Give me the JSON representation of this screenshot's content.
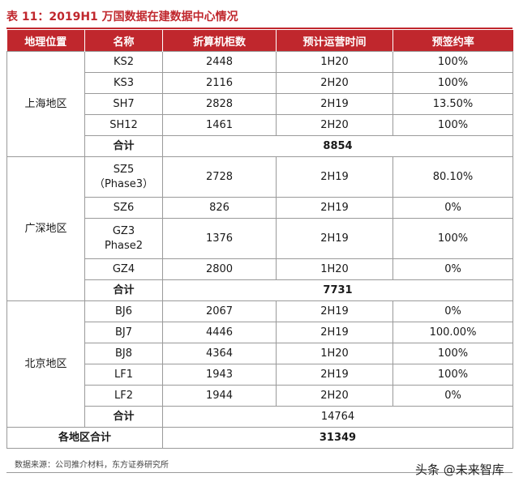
{
  "title": "表 11：2019H1 万国数据在建数据中心情况",
  "headers": [
    "地理位置",
    "名称",
    "折算机柜数",
    "预计运营时间",
    "预签约率"
  ],
  "regions": [
    {
      "name": "上海地区",
      "rows": [
        {
          "name": "KS2",
          "cabinets": "2448",
          "time": "1H20",
          "rate": "100%"
        },
        {
          "name": "KS3",
          "cabinets": "2116",
          "time": "2H20",
          "rate": "100%"
        },
        {
          "name": "SH7",
          "cabinets": "2828",
          "time": "2H19",
          "rate": "13.50%"
        },
        {
          "name": "SH12",
          "cabinets": "1461",
          "time": "2H20",
          "rate": "100%"
        }
      ],
      "subtotal_label": "合计",
      "subtotal_value": "8854"
    },
    {
      "name": "广深地区",
      "rows": [
        {
          "name_line1": "SZ5",
          "name_line2": "（Phase3）",
          "cabinets": "2728",
          "time": "2H19",
          "rate": "80.10%"
        },
        {
          "name": "SZ6",
          "cabinets": "826",
          "time": "2H19",
          "rate": "0%"
        },
        {
          "name_line1": "GZ3",
          "name_line2": "Phase2",
          "cabinets": "1376",
          "time": "2H19",
          "rate": "100%"
        },
        {
          "name": "GZ4",
          "cabinets": "2800",
          "time": "1H20",
          "rate": "0%"
        }
      ],
      "subtotal_label": "合计",
      "subtotal_value": "7731"
    },
    {
      "name": "北京地区",
      "rows": [
        {
          "name": "BJ6",
          "cabinets": "2067",
          "time": "2H19",
          "rate": "0%"
        },
        {
          "name": "BJ7",
          "cabinets": "4446",
          "time": "2H19",
          "rate": "100.00%"
        },
        {
          "name": "BJ8",
          "cabinets": "4364",
          "time": "1H20",
          "rate": "100%"
        },
        {
          "name": "LF1",
          "cabinets": "1943",
          "time": "2H19",
          "rate": "100%"
        },
        {
          "name": "LF2",
          "cabinets": "1944",
          "time": "2H20",
          "rate": "0%"
        }
      ],
      "subtotal_label": "合计",
      "subtotal_value": "14764"
    }
  ],
  "grand_total_label": "各地区合计",
  "grand_total_value": "31349",
  "source": "数据来源：公司推介材料，东方证券研究所",
  "watermark": "头条 @未来智库"
}
